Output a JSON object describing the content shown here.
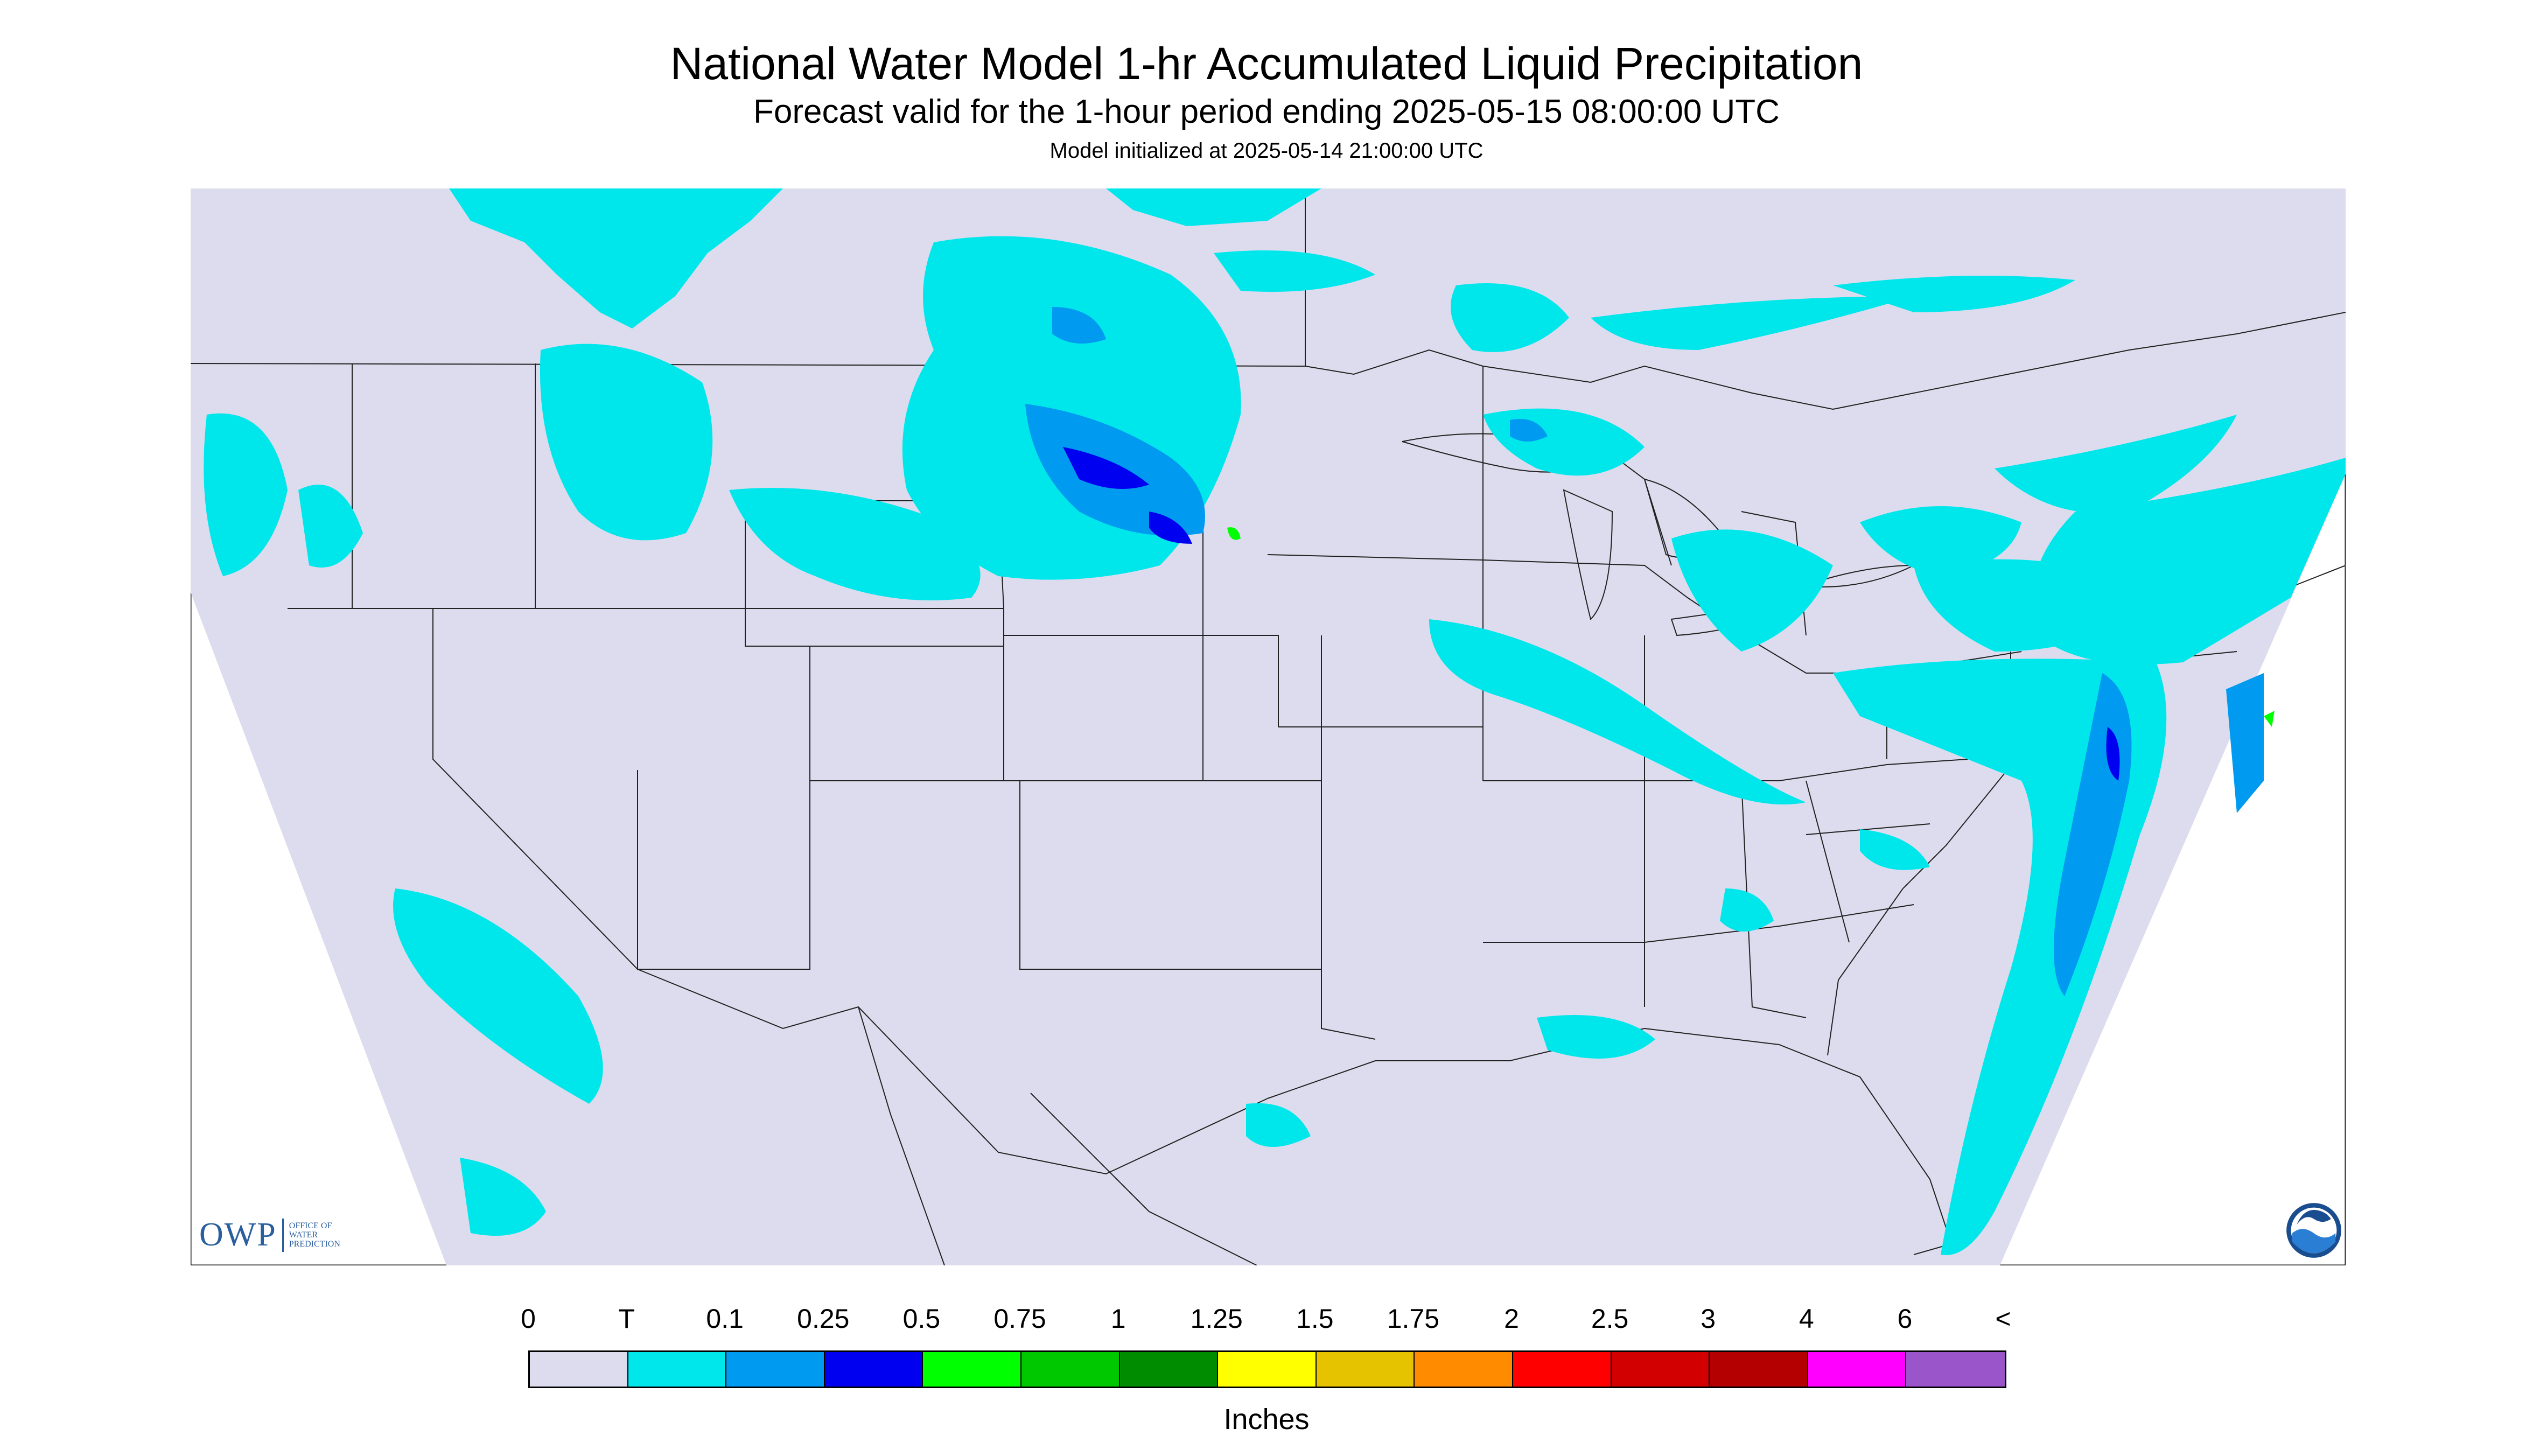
{
  "title": "National Water Model 1-hr Accumulated Liquid Precipitation",
  "subtitle": "Forecast valid for the 1-hour period ending 2025-05-15 08:00:00 UTC",
  "init_line": "Model initialized at 2025-05-14 21:00:00 UTC",
  "legend": {
    "units": "Inches",
    "labels": [
      "0",
      "T",
      "0.1",
      "0.25",
      "0.5",
      "0.75",
      "1",
      "1.25",
      "1.5",
      "1.75",
      "2",
      "2.5",
      "3",
      "4",
      "6",
      "<"
    ],
    "colors": [
      "#dcdcee",
      "#00e7eb",
      "#009af0",
      "#0000f0",
      "#00ff00",
      "#00c800",
      "#008c00",
      "#ffff00",
      "#e6c300",
      "#ff8c00",
      "#ff0000",
      "#d20000",
      "#b40000",
      "#ff00ff",
      "#9955c9"
    ]
  },
  "colors": {
    "no_precip": "#dcdcee",
    "trace": "#00e7eb",
    "light": "#009af0",
    "moderate": "#0000f0",
    "heavy": "#00ff00"
  },
  "logos": {
    "owp_mark": "OWP",
    "owp_text": "OFFICE OF WATER PREDICTION",
    "noaa_text": "NOAA"
  }
}
